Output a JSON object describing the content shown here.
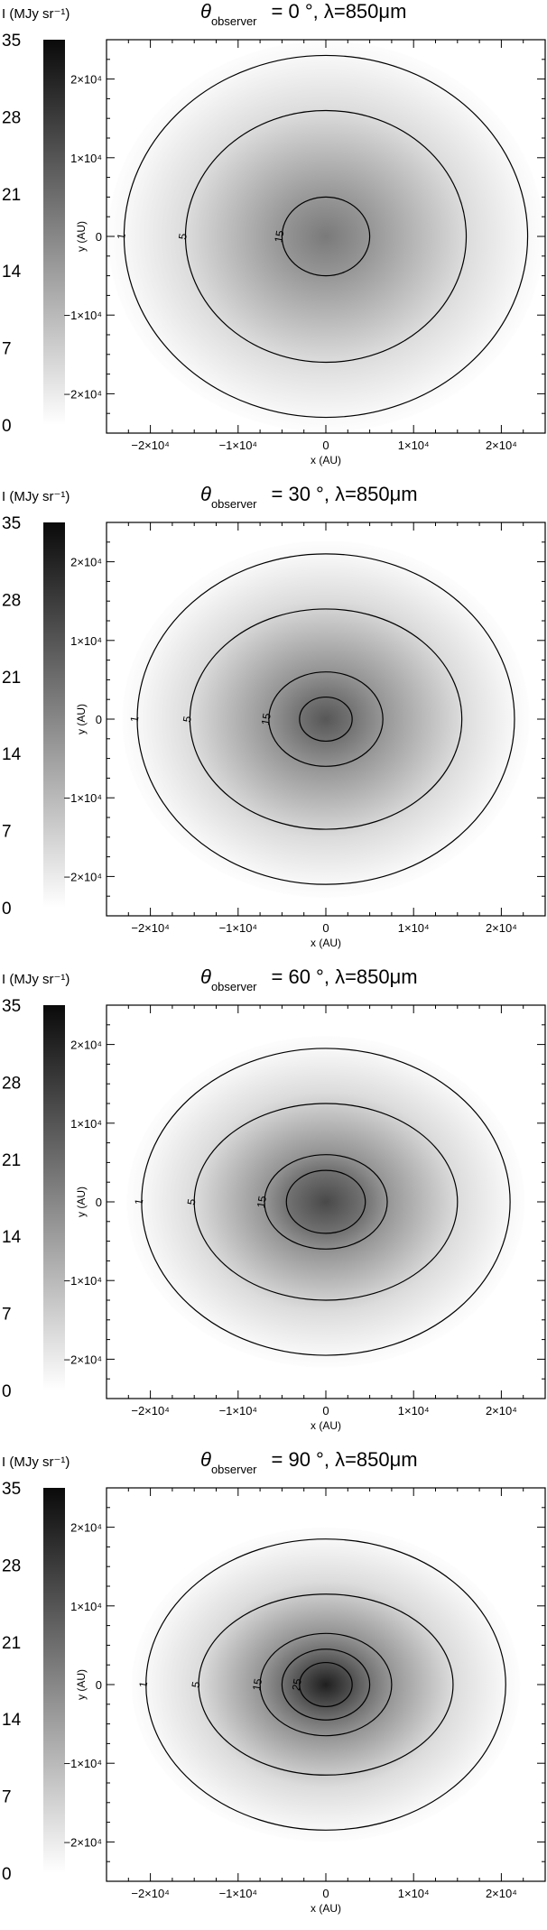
{
  "chart_data": [
    {
      "type": "heatmap",
      "title": "θ observer = 0 °, λ=850μm",
      "title_parts": {
        "symbol": "θ",
        "subscript": "observer",
        "text": "=  0 °,  λ=850μm"
      },
      "xlabel": "x (AU)",
      "ylabel": "y (AU)",
      "xlim": [
        -25000,
        25000
      ],
      "ylim": [
        -25000,
        25000
      ],
      "xticks": [
        -20000,
        -10000,
        0,
        10000,
        20000
      ],
      "xtick_labels": [
        "−2×10⁴",
        "−1×10⁴",
        "0",
        "1×10⁴",
        "2×10⁴"
      ],
      "yticks": [
        -20000,
        -10000,
        0,
        10000,
        20000
      ],
      "ytick_labels": [
        "−2×10⁴",
        "−1×10⁴",
        "0",
        "1×10⁴",
        "2×10⁴"
      ],
      "colorbar": {
        "label": "I (MJy sr⁻¹)",
        "range": [
          0,
          35
        ],
        "ticks": [
          0,
          7,
          14,
          21,
          28,
          35
        ],
        "tick_labels": [
          "0",
          "7",
          "14",
          "21",
          "28",
          "35"
        ],
        "colormap": "white-to-black"
      },
      "peak_intensity": 19,
      "contours": [
        {
          "level": 1,
          "label": "1",
          "rx": 23000,
          "ry": 23000
        },
        {
          "level": 5,
          "label": "5",
          "rx": 16000,
          "ry": 16000
        },
        {
          "level": 15,
          "label": "15",
          "rx": 5000,
          "ry": 5000
        }
      ]
    },
    {
      "type": "heatmap",
      "title": "θ observer = 30 °, λ=850μm",
      "title_parts": {
        "symbol": "θ",
        "subscript": "observer",
        "text": "= 30 °,  λ=850μm"
      },
      "xlabel": "x (AU)",
      "ylabel": "y (AU)",
      "xlim": [
        -25000,
        25000
      ],
      "ylim": [
        -25000,
        25000
      ],
      "xticks": [
        -20000,
        -10000,
        0,
        10000,
        20000
      ],
      "xtick_labels": [
        "−2×10⁴",
        "−1×10⁴",
        "0",
        "1×10⁴",
        "2×10⁴"
      ],
      "yticks": [
        -20000,
        -10000,
        0,
        10000,
        20000
      ],
      "ytick_labels": [
        "−2×10⁴",
        "−1×10⁴",
        "0",
        "1×10⁴",
        "2×10⁴"
      ],
      "colorbar": {
        "label": "I (MJy sr⁻¹)",
        "range": [
          0,
          35
        ],
        "ticks": [
          0,
          7,
          14,
          21,
          28,
          35
        ],
        "tick_labels": [
          "0",
          "7",
          "14",
          "21",
          "28",
          "35"
        ],
        "colormap": "white-to-black"
      },
      "peak_intensity": 24,
      "contours": [
        {
          "level": 1,
          "label": "1",
          "rx": 21500,
          "ry": 21000
        },
        {
          "level": 5,
          "label": "5",
          "rx": 15500,
          "ry": 14000
        },
        {
          "level": 15,
          "label": "15",
          "rx": 6500,
          "ry": 6000
        },
        {
          "level": 20,
          "label": "",
          "rx": 3000,
          "ry": 2800
        }
      ]
    },
    {
      "type": "heatmap",
      "title": "θ observer = 60 °, λ=850μm",
      "title_parts": {
        "symbol": "θ",
        "subscript": "observer",
        "text": "= 60 °,  λ=850μm"
      },
      "xlabel": "x (AU)",
      "ylabel": "y (AU)",
      "xlim": [
        -25000,
        25000
      ],
      "ylim": [
        -25000,
        25000
      ],
      "xticks": [
        -20000,
        -10000,
        0,
        10000,
        20000
      ],
      "xtick_labels": [
        "−2×10⁴",
        "−1×10⁴",
        "0",
        "1×10⁴",
        "2×10⁴"
      ],
      "yticks": [
        -20000,
        -10000,
        0,
        10000,
        20000
      ],
      "ytick_labels": [
        "−2×10⁴",
        "−1×10⁴",
        "0",
        "1×10⁴",
        "2×10⁴"
      ],
      "colorbar": {
        "label": "I (MJy sr⁻¹)",
        "range": [
          0,
          35
        ],
        "ticks": [
          0,
          7,
          14,
          21,
          28,
          35
        ],
        "tick_labels": [
          "0",
          "7",
          "14",
          "21",
          "28",
          "35"
        ],
        "colormap": "white-to-black"
      },
      "peak_intensity": 26,
      "contours": [
        {
          "level": 1,
          "label": "1",
          "rx": 21000,
          "ry": 19500
        },
        {
          "level": 5,
          "label": "5",
          "rx": 15000,
          "ry": 12500
        },
        {
          "level": 15,
          "label": "15",
          "rx": 7000,
          "ry": 6000
        },
        {
          "level": 20,
          "label": "",
          "rx": 4500,
          "ry": 4000
        }
      ]
    },
    {
      "type": "heatmap",
      "title": "θ observer = 90 °, λ=850μm",
      "title_parts": {
        "symbol": "θ",
        "subscript": "observer",
        "text": "= 90 °,  λ=850μm"
      },
      "xlabel": "x (AU)",
      "ylabel": "y (AU)",
      "xlim": [
        -25000,
        25000
      ],
      "ylim": [
        -25000,
        25000
      ],
      "xticks": [
        -20000,
        -10000,
        0,
        10000,
        20000
      ],
      "xtick_labels": [
        "−2×10⁴",
        "−1×10⁴",
        "0",
        "1×10⁴",
        "2×10⁴"
      ],
      "yticks": [
        -20000,
        -10000,
        0,
        10000,
        20000
      ],
      "ytick_labels": [
        "−2×10⁴",
        "−1×10⁴",
        "0",
        "1×10⁴",
        "2×10⁴"
      ],
      "colorbar": {
        "label": "I (MJy sr⁻¹)",
        "range": [
          0,
          35
        ],
        "ticks": [
          0,
          7,
          14,
          21,
          28,
          35
        ],
        "tick_labels": [
          "0",
          "7",
          "14",
          "21",
          "28",
          "35"
        ],
        "colormap": "white-to-black"
      },
      "peak_intensity": 32,
      "contours": [
        {
          "level": 1,
          "label": "1",
          "rx": 20500,
          "ry": 18500
        },
        {
          "level": 5,
          "label": "5",
          "rx": 14500,
          "ry": 11500
        },
        {
          "level": 15,
          "label": "15",
          "rx": 7500,
          "ry": 6500
        },
        {
          "level": 20,
          "label": "",
          "rx": 5000,
          "ry": 4500
        },
        {
          "level": 25,
          "label": "25",
          "rx": 3000,
          "ry": 2800
        }
      ]
    }
  ]
}
